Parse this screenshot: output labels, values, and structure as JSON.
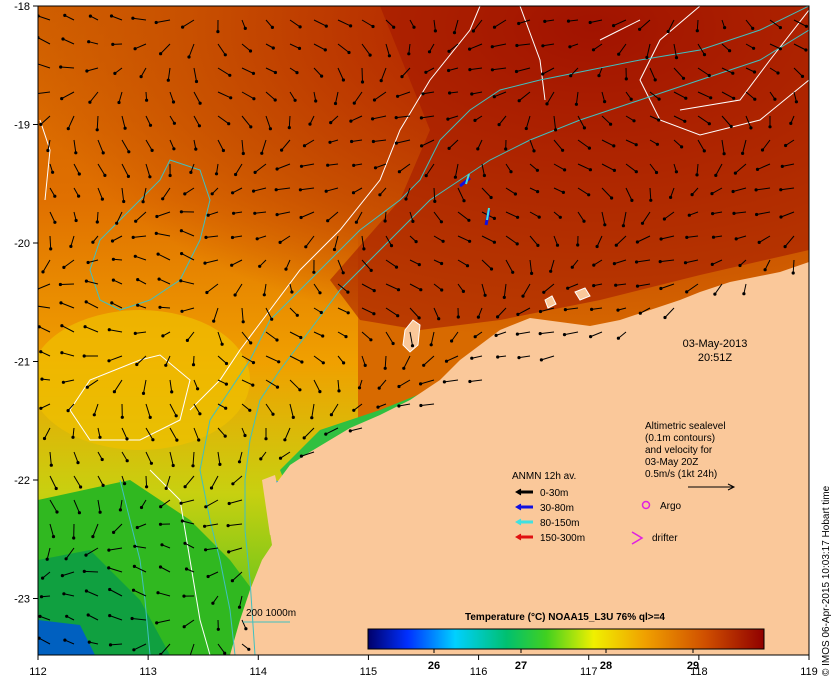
{
  "map": {
    "x_ticks": [
      "112",
      "113",
      "114",
      "115",
      "116",
      "117",
      "118",
      "119"
    ],
    "y_ticks": [
      "-18",
      "-19",
      "-20",
      "-21",
      "-22",
      "-23"
    ],
    "date": "03-May-2013",
    "time": "20:51Z",
    "legend_altimetric": [
      "Altimetric sealevel",
      "(0.1m contours)",
      "and velocity for",
      "03-May 20Z",
      "0.5m/s (1kt 24h)"
    ],
    "anmn_title": "ANMN 12h av.",
    "anmn_items": [
      {
        "label": "0-30m",
        "color": "#000000"
      },
      {
        "label": "30-80m",
        "color": "#1010e0"
      },
      {
        "label": "80-150m",
        "color": "#40e0e0"
      },
      {
        "label": "150-300m",
        "color": "#e01010"
      }
    ],
    "argo_label": "Argo",
    "argo_color": "#e020e0",
    "drifter_label": "drifter",
    "drifter_color": "#e020e0",
    "isobath_label": "200  1000m",
    "isobath_color": "#40c0c0",
    "colorbar_title": "Temperature (°C) NOAA15_L3U 76% ql>=4",
    "colorbar_ticks": [
      "26",
      "27",
      "28",
      "29"
    ],
    "credit": "© IMOS 06-Apr-2015 10:03:17 Hobart time",
    "colors": {
      "land": "#fac89a",
      "contour_sealevel": "#ffffff",
      "contour_isobath": "#40c0c0"
    }
  }
}
